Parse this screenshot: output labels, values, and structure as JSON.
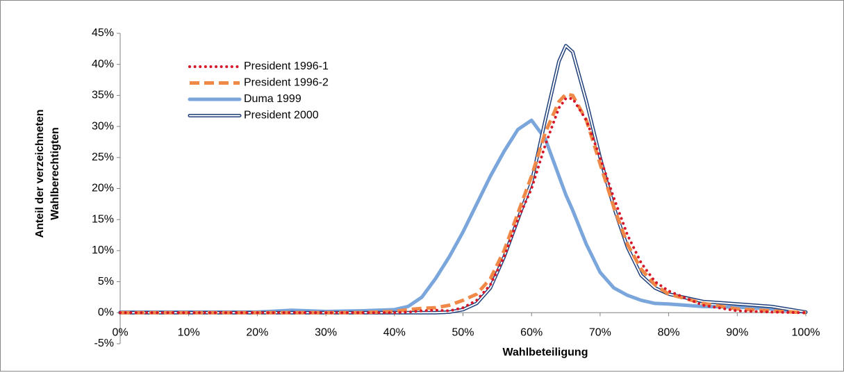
{
  "chart_data": {
    "type": "line",
    "x_label": "Wahlbeteiligung",
    "y_label": [
      "Anteil der verzeichneten",
      "Wahlberechtigten"
    ],
    "x": [
      0,
      10,
      20,
      25,
      30,
      35,
      40,
      42,
      44,
      46,
      48,
      50,
      52,
      54,
      56,
      58,
      60,
      62,
      64,
      65,
      66,
      68,
      70,
      72,
      74,
      76,
      78,
      80,
      85,
      90,
      95,
      100
    ],
    "series": [
      {
        "name": "President 1996-1",
        "color": "#d7182a",
        "style": "dotted",
        "values": [
          0,
          0,
          0,
          0,
          0,
          0,
          0,
          0.1,
          0.3,
          0.4,
          0.3,
          0.8,
          2,
          4.5,
          9,
          15,
          20,
          27,
          33,
          34.5,
          34.5,
          31,
          25,
          18.5,
          12.5,
          8,
          5,
          3.5,
          1.2,
          0.3,
          0.1,
          0
        ]
      },
      {
        "name": "President 1996-2",
        "color": "#f08848",
        "style": "dashed",
        "values": [
          0,
          0,
          0,
          0,
          0,
          0,
          0.2,
          0.5,
          0.7,
          0.8,
          1.2,
          2,
          3,
          5.5,
          10,
          16,
          22,
          29,
          34,
          35.2,
          35,
          31,
          24,
          17,
          11,
          7,
          4.5,
          3,
          1.5,
          0.6,
          0.3,
          0
        ]
      },
      {
        "name": "Duma 1999",
        "color": "#7aa6dc",
        "style": "thick",
        "values": [
          0.1,
          0.1,
          0.1,
          0.4,
          0.2,
          0.3,
          0.5,
          1,
          2.5,
          5.5,
          9,
          13,
          17.5,
          22,
          26,
          29.5,
          31,
          28,
          22,
          19,
          16.5,
          11,
          6.5,
          4,
          2.8,
          2,
          1.5,
          1.4,
          1,
          0.9,
          0.6,
          0.1
        ]
      },
      {
        "name": "President 2000",
        "color": "#1f3f7a",
        "style": "double",
        "values": [
          0,
          0,
          0,
          0,
          0,
          0,
          0,
          0,
          0,
          0,
          0.1,
          0.5,
          1.5,
          4,
          9,
          15,
          21,
          31,
          40.5,
          43,
          42,
          34,
          25,
          17,
          10.5,
          6,
          4,
          3,
          1.8,
          1.4,
          1,
          0.1
        ]
      }
    ],
    "xlim": [
      0,
      100
    ],
    "xticks": [
      {
        "value": 0,
        "label": "0%"
      },
      {
        "value": 10,
        "label": "10%"
      },
      {
        "value": 20,
        "label": "20%"
      },
      {
        "value": 30,
        "label": "30%"
      },
      {
        "value": 40,
        "label": "40%"
      },
      {
        "value": 50,
        "label": "50%"
      },
      {
        "value": 60,
        "label": "60%"
      },
      {
        "value": 70,
        "label": "70%"
      },
      {
        "value": 80,
        "label": "80%"
      },
      {
        "value": 90,
        "label": "90%"
      },
      {
        "value": 100,
        "label": "100%"
      }
    ],
    "ylim": [
      -5,
      45
    ],
    "yticks": [
      {
        "value": -5,
        "label": "-5%"
      },
      {
        "value": 0,
        "label": "0%"
      },
      {
        "value": 5,
        "label": "5%"
      },
      {
        "value": 10,
        "label": "10%"
      },
      {
        "value": 15,
        "label": "15%"
      },
      {
        "value": 20,
        "label": "20%"
      },
      {
        "value": 25,
        "label": "25%"
      },
      {
        "value": 30,
        "label": "30%"
      },
      {
        "value": 35,
        "label": "35%"
      },
      {
        "value": 40,
        "label": "40%"
      },
      {
        "value": 45,
        "label": "45%"
      }
    ],
    "grid": false,
    "legend": "upper left"
  }
}
